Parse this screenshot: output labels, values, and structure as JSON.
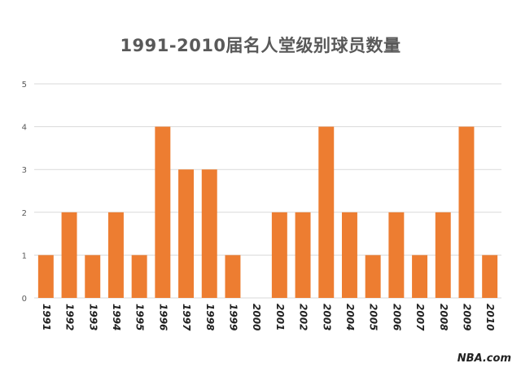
{
  "chart_data": {
    "type": "bar",
    "title": "1991-2010届名人堂级别球员数量",
    "xlabel": "",
    "ylabel": "",
    "categories": [
      "1991",
      "1992",
      "1993",
      "1994",
      "1995",
      "1996",
      "1997",
      "1998",
      "1999",
      "2000",
      "2001",
      "2002",
      "2003",
      "2004",
      "2005",
      "2006",
      "2007",
      "2008",
      "2009",
      "2010"
    ],
    "values": [
      1,
      2,
      1,
      2,
      1,
      4,
      3,
      3,
      1,
      0,
      2,
      2,
      4,
      2,
      1,
      2,
      1,
      2,
      4,
      1
    ],
    "ylim": [
      0,
      5
    ],
    "yticks": [
      "0",
      "1",
      "2",
      "3",
      "4",
      "5"
    ],
    "grid": true,
    "bar_color": "#ED7D31",
    "grid_color": "#D9D9D9",
    "tick_label_orientation": "rotated-90"
  },
  "watermark": "NBA.com"
}
